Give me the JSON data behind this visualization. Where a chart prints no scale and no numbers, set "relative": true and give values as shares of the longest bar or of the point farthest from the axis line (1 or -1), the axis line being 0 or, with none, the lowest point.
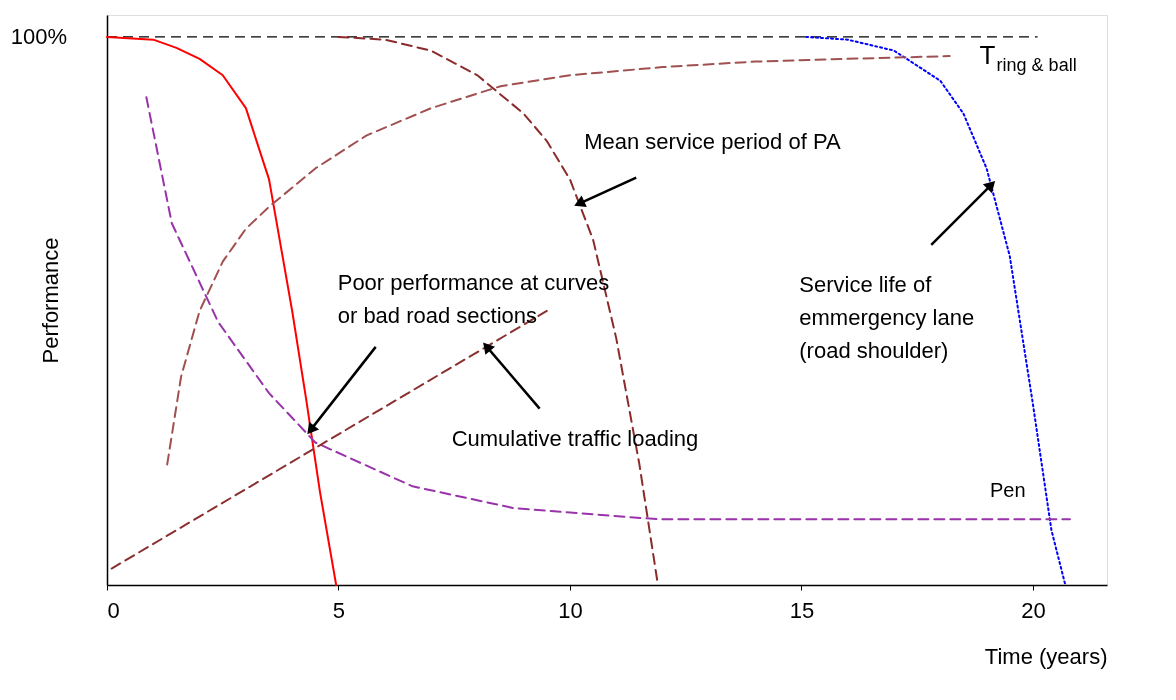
{
  "chart_data": {
    "type": "line",
    "relative": true,
    "xlabel": "Time (years)",
    "ylabel": "Performance",
    "xlim": [
      0,
      21.6
    ],
    "xticks": [
      0,
      5,
      10,
      15,
      20
    ],
    "grid": false,
    "marker": "none",
    "ref_lines": [
      {
        "axis": "y",
        "value": 1,
        "label": "100%",
        "color": "#000000",
        "line_style": "dashed"
      }
    ],
    "series": [
      {
        "color": "#ff0000",
        "line_style": "solid",
        "x": [
          0,
          1,
          1.5,
          2,
          2.5,
          3,
          3.5,
          4,
          4.3,
          4.6,
          4.95
        ],
        "values": [
          1,
          0.995,
          0.98,
          0.96,
          0.93,
          0.87,
          0.74,
          0.5,
          0.34,
          0.17,
          0
        ]
      },
      {
        "color": "#8b2b2b",
        "line_style": "dashed",
        "x": [
          5,
          6,
          7,
          8,
          9,
          9.5,
          10,
          10.5,
          11,
          11.5,
          11.9
        ],
        "values": [
          1,
          0.995,
          0.975,
          0.93,
          0.86,
          0.81,
          0.74,
          0.63,
          0.45,
          0.22,
          0
        ]
      },
      {
        "color": "#0000ff",
        "line_style": "dotted",
        "x": [
          15.1,
          16,
          17,
          18,
          18.5,
          19,
          19.5,
          20,
          20.4,
          20.7
        ],
        "values": [
          1,
          0.995,
          0.975,
          0.92,
          0.86,
          0.76,
          0.6,
          0.33,
          0.1,
          0
        ]
      },
      {
        "name": "T$_{ring & ball}$",
        "color": "#a05050",
        "line_style": "dashed",
        "x": [
          1.3,
          1.6,
          2,
          2.5,
          3,
          3.5,
          4.5,
          5.6,
          7,
          8.5,
          10,
          12,
          14,
          16,
          18.2
        ],
        "values": [
          0.22,
          0.38,
          0.5,
          0.59,
          0.65,
          0.69,
          0.76,
          0.82,
          0.87,
          0.91,
          0.93,
          0.945,
          0.955,
          0.96,
          0.965
        ]
      },
      {
        "name": "Pen",
        "color": "#9933aa",
        "line_style": "dashed",
        "x": [
          0.85,
          1.4,
          2.4,
          3.5,
          4.5,
          6.6,
          8.8,
          11.9,
          20.8
        ],
        "values": [
          0.89,
          0.66,
          0.48,
          0.35,
          0.26,
          0.18,
          0.14,
          0.12,
          0.12
        ]
      },
      {
        "color": "#8b3030",
        "line_style": "dashed",
        "x": [
          0.1,
          9.5
        ],
        "values": [
          0.03,
          0.5
        ]
      }
    ],
    "annotations": [
      {
        "text": "Mean service period of PA",
        "x": 10.2,
        "y": 0.696
      },
      {
        "text": "Poor performance at curves\nor bad road sections",
        "x": 4.4,
        "y": 0.283
      },
      {
        "text": "Cumulative traffic loading",
        "x": 8.2,
        "y": 0.435
      },
      {
        "text": "Service life of\nemmergency lane\n(road shoulder)",
        "x": 19.1,
        "y": 0.73
      }
    ]
  }
}
